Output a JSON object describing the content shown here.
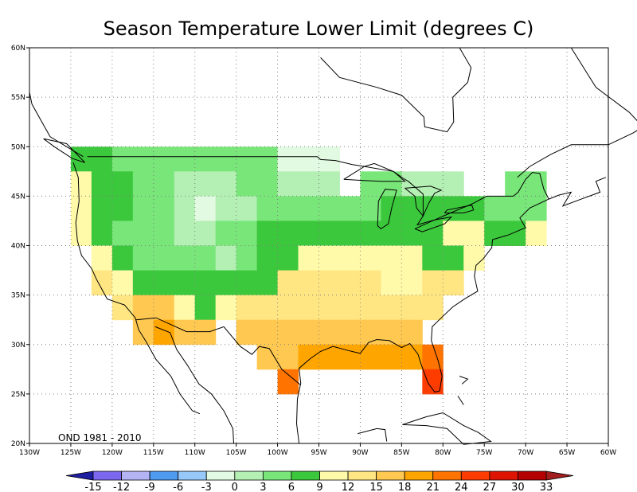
{
  "title": "Season Temperature Lower Limit (degrees C)",
  "period_label": "OND 1981 - 2010",
  "lon_labels": [
    "130W",
    "125W",
    "120W",
    "115W",
    "110W",
    "105W",
    "100W",
    "95W",
    "90W",
    "85W",
    "80W",
    "75W",
    "70W",
    "65W",
    "60W"
  ],
  "lat_labels": [
    "20N",
    "25N",
    "30N",
    "35N",
    "40N",
    "45N",
    "50N",
    "55N",
    "60N"
  ],
  "lon_range": [
    -130,
    -60
  ],
  "lat_range": [
    20,
    60
  ],
  "colorbar": {
    "labels": [
      "-15",
      "-12",
      "-9",
      "-6",
      "-3",
      "0",
      "3",
      "6",
      "9",
      "12",
      "15",
      "18",
      "21",
      "24",
      "27",
      "30",
      "33"
    ],
    "colors": [
      "#1e1ea0",
      "#7b68ee",
      "#b4b4f5",
      "#4f9bf0",
      "#96c8fa",
      "#e1fae1",
      "#b4f0b4",
      "#78e678",
      "#3cc83c",
      "#fffaaa",
      "#ffe682",
      "#ffc850",
      "#ffa500",
      "#ff7300",
      "#ff3c00",
      "#dc1400",
      "#b40000",
      "#a01e1e"
    ]
  },
  "chart_data": {
    "type": "heatmap",
    "title": "Season Temperature Lower Limit (degrees C)",
    "units": "degrees C",
    "period": "OND 1981 - 2010",
    "grid_spacing_deg": 2.5,
    "note_values": "each row: [lat_center, lon_start, lon_end, temperature_lower_limit]",
    "cells": [
      [
        48.75,
        -125,
        -120,
        6
      ],
      [
        48.75,
        -120,
        -105,
        3
      ],
      [
        48.75,
        -105,
        -100,
        3
      ],
      [
        48.75,
        -100,
        -95,
        -3
      ],
      [
        48.75,
        -95,
        -92.5,
        -3
      ],
      [
        46.25,
        -125,
        -122.5,
        9
      ],
      [
        46.25,
        -122.5,
        -117.5,
        6
      ],
      [
        46.25,
        -117.5,
        -112.5,
        3
      ],
      [
        46.25,
        -112.5,
        -105,
        0
      ],
      [
        46.25,
        -105,
        -100,
        3
      ],
      [
        46.25,
        -100,
        -92.5,
        0
      ],
      [
        46.25,
        -90,
        -85,
        3
      ],
      [
        46.25,
        -85,
        -77.5,
        0
      ],
      [
        46.25,
        -72.5,
        -67.5,
        3
      ],
      [
        43.75,
        -125,
        -122.5,
        9
      ],
      [
        43.75,
        -122.5,
        -117.5,
        6
      ],
      [
        43.75,
        -117.5,
        -112.5,
        3
      ],
      [
        43.75,
        -112.5,
        -110,
        0
      ],
      [
        43.75,
        -110,
        -107.5,
        -3
      ],
      [
        43.75,
        -107.5,
        -102.5,
        0
      ],
      [
        43.75,
        -102.5,
        -92.5,
        3
      ],
      [
        43.75,
        -92.5,
        -87.5,
        3
      ],
      [
        43.75,
        -87.5,
        -85,
        6
      ],
      [
        43.75,
        -85,
        -80,
        6
      ],
      [
        43.75,
        -80,
        -75,
        6
      ],
      [
        43.75,
        -75,
        -70,
        3
      ],
      [
        43.75,
        -70,
        -67.5,
        3
      ],
      [
        41.25,
        -125,
        -122.5,
        9
      ],
      [
        41.25,
        -122.5,
        -120,
        6
      ],
      [
        41.25,
        -120,
        -112.5,
        3
      ],
      [
        41.25,
        -112.5,
        -107.5,
        0
      ],
      [
        41.25,
        -107.5,
        -102.5,
        3
      ],
      [
        41.25,
        -102.5,
        -92.5,
        6
      ],
      [
        41.25,
        -92.5,
        -85,
        6
      ],
      [
        41.25,
        -85,
        -80,
        6
      ],
      [
        41.25,
        -80,
        -75,
        9
      ],
      [
        41.25,
        -75,
        -70,
        6
      ],
      [
        41.25,
        -70,
        -67.5,
        9
      ],
      [
        38.75,
        -122.5,
        -120,
        9
      ],
      [
        38.75,
        -120,
        -117.5,
        6
      ],
      [
        38.75,
        -117.5,
        -112.5,
        3
      ],
      [
        38.75,
        -112.5,
        -107.5,
        3
      ],
      [
        38.75,
        -107.5,
        -105,
        0
      ],
      [
        38.75,
        -105,
        -102.5,
        3
      ],
      [
        38.75,
        -102.5,
        -97.5,
        6
      ],
      [
        38.75,
        -97.5,
        -87.5,
        9
      ],
      [
        38.75,
        -87.5,
        -82.5,
        9
      ],
      [
        38.75,
        -82.5,
        -77.5,
        6
      ],
      [
        38.75,
        -77.5,
        -75,
        9
      ],
      [
        36.25,
        -122.5,
        -120,
        12
      ],
      [
        36.25,
        -120,
        -117.5,
        9
      ],
      [
        36.25,
        -117.5,
        -115,
        6
      ],
      [
        36.25,
        -115,
        -107.5,
        6
      ],
      [
        36.25,
        -107.5,
        -100,
        6
      ],
      [
        36.25,
        -100,
        -95,
        12
      ],
      [
        36.25,
        -95,
        -87.5,
        12
      ],
      [
        36.25,
        -87.5,
        -82.5,
        9
      ],
      [
        36.25,
        -82.5,
        -77.5,
        12
      ],
      [
        33.75,
        -120,
        -117.5,
        12
      ],
      [
        33.75,
        -117.5,
        -112.5,
        15
      ],
      [
        33.75,
        -112.5,
        -110,
        9
      ],
      [
        33.75,
        -110,
        -107.5,
        6
      ],
      [
        33.75,
        -107.5,
        -105,
        9
      ],
      [
        33.75,
        -105,
        -97.5,
        12
      ],
      [
        33.75,
        -97.5,
        -82.5,
        12
      ],
      [
        33.75,
        -82.5,
        -80,
        12
      ],
      [
        31.25,
        -117.5,
        -115,
        15
      ],
      [
        31.25,
        -115,
        -112.5,
        18
      ],
      [
        31.25,
        -112.5,
        -107.5,
        15
      ],
      [
        31.25,
        -105,
        -97.5,
        15
      ],
      [
        31.25,
        -97.5,
        -82.5,
        15
      ],
      [
        28.75,
        -102.5,
        -97.5,
        15
      ],
      [
        28.75,
        -97.5,
        -85,
        18
      ],
      [
        28.75,
        -85,
        -82.5,
        18
      ],
      [
        28.75,
        -82.5,
        -80,
        21
      ],
      [
        26.25,
        -100,
        -97.5,
        21
      ],
      [
        26.25,
        -82.5,
        -80,
        24
      ]
    ]
  }
}
